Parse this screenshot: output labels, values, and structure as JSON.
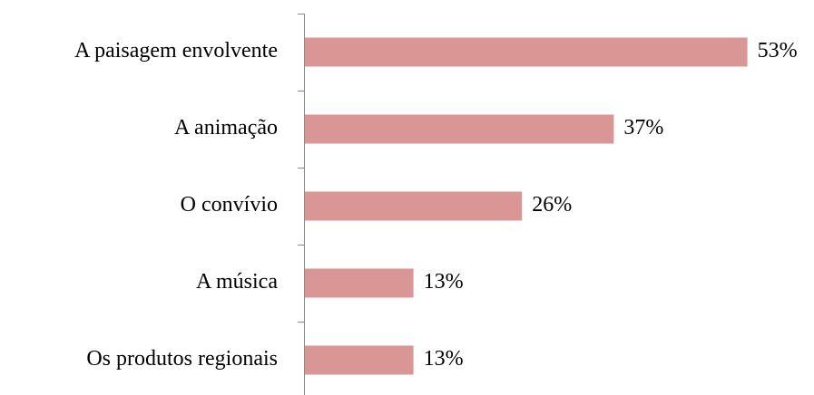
{
  "chart_data": {
    "type": "bar",
    "orientation": "horizontal",
    "categories": [
      "A paisagem envolvente",
      "A animação",
      "O convívio",
      "A música",
      "Os produtos regionais"
    ],
    "values": [
      53,
      37,
      26,
      13,
      13
    ],
    "value_labels": [
      "53%",
      "37%",
      "26%",
      "13%",
      "13%"
    ],
    "color": "#d99694"
  }
}
